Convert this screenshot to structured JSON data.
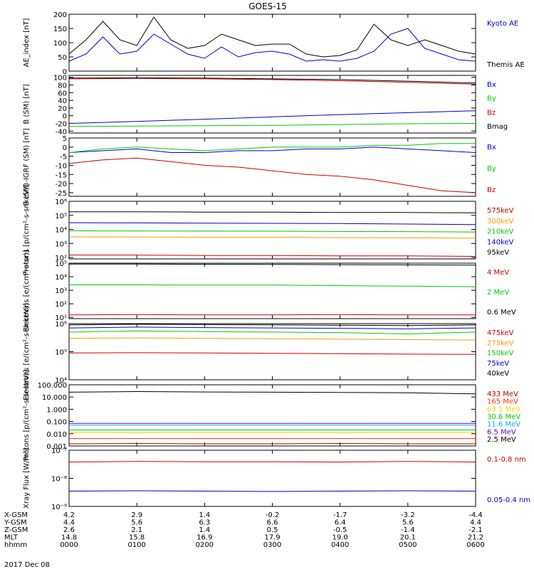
{
  "title": "GOES-15",
  "date_label": "2017 Dec 08",
  "chart_data": [
    {
      "type": "line",
      "ylabel": "AE_index [nT]",
      "yscale": "linear",
      "ylim": [
        0,
        200
      ],
      "ticks": [
        0,
        50,
        100,
        150,
        200
      ],
      "tick_labels": [
        "0",
        "50",
        "100",
        "150",
        "200"
      ],
      "legend": [
        "Kyoto AE",
        "Themis AE"
      ],
      "series": [
        {
          "name": "Kyoto AE",
          "color": "#0000cc",
          "x": [
            0,
            0.25,
            0.5,
            0.75,
            1,
            1.25,
            1.5,
            1.75,
            2,
            2.25,
            2.5,
            2.75,
            3,
            3.25,
            3.5,
            3.75,
            4,
            4.25,
            4.5,
            4.75,
            5,
            5.25,
            5.5,
            5.75,
            6
          ],
          "y": [
            35,
            60,
            120,
            60,
            70,
            130,
            95,
            60,
            45,
            85,
            50,
            65,
            70,
            60,
            35,
            40,
            35,
            45,
            70,
            130,
            150,
            80,
            60,
            40,
            35
          ]
        },
        {
          "name": "Themis AE",
          "color": "#000000",
          "x": [
            0,
            0.25,
            0.5,
            0.75,
            1,
            1.25,
            1.5,
            1.75,
            2,
            2.25,
            2.5,
            2.75,
            3,
            3.25,
            3.5,
            3.75,
            4,
            4.25,
            4.5,
            4.75,
            5,
            5.25,
            5.5,
            5.75,
            6
          ],
          "y": [
            60,
            110,
            175,
            110,
            90,
            190,
            110,
            80,
            90,
            130,
            110,
            90,
            95,
            95,
            60,
            50,
            55,
            75,
            165,
            110,
            90,
            110,
            90,
            70,
            60
          ]
        }
      ]
    },
    {
      "type": "line",
      "ylabel": "B (SM) [nT]",
      "yscale": "linear",
      "ylim": [
        -45,
        105
      ],
      "ticks": [
        -40,
        -20,
        0,
        20,
        40,
        60,
        80,
        100
      ],
      "tick_labels": [
        "-40",
        "-20",
        "0",
        "20",
        "40",
        "60",
        "80",
        "100"
      ],
      "legend": [
        "Bx",
        "By",
        "Bz",
        "Bmag"
      ],
      "series": [
        {
          "name": "Bx",
          "color": "#0000cc",
          "x": [
            0,
            1,
            2,
            3,
            4,
            5,
            6
          ],
          "y": [
            -20,
            -15,
            -9,
            -3,
            3,
            8,
            13
          ]
        },
        {
          "name": "By",
          "color": "#00cc00",
          "x": [
            0,
            1,
            2,
            3,
            4,
            5,
            6
          ],
          "y": [
            -28,
            -27,
            -26,
            -25,
            -23,
            -21,
            -20
          ]
        },
        {
          "name": "Bz",
          "color": "#cc0000",
          "x": [
            0,
            1,
            2,
            3,
            4,
            5,
            6
          ],
          "y": [
            96,
            97,
            96,
            94,
            91,
            87,
            82
          ]
        },
        {
          "name": "Bmag",
          "color": "#000000",
          "x": [
            0,
            1,
            2,
            3,
            4,
            5,
            6
          ],
          "y": [
            98,
            99,
            98,
            96,
            94,
            90,
            85
          ]
        }
      ]
    },
    {
      "type": "line",
      "ylabel": "B (SM)-IGRF (SM) [nT]",
      "yscale": "linear",
      "ylim": [
        -27,
        5
      ],
      "ticks": [
        -25,
        -20,
        -15,
        -10,
        -5,
        0,
        5
      ],
      "tick_labels": [
        "-25",
        "-20",
        "-15",
        "-10",
        "-5",
        "0",
        "5"
      ],
      "legend": [
        "Bx",
        "By",
        "Bz"
      ],
      "series": [
        {
          "name": "Bx",
          "color": "#0000cc",
          "x": [
            0,
            0.5,
            1,
            1.5,
            2,
            2.5,
            3,
            3.5,
            4,
            4.5,
            5,
            5.5,
            6
          ],
          "y": [
            -3,
            -2,
            -1,
            -3,
            -3,
            -2,
            -2,
            -1,
            -1,
            0,
            -1,
            -2,
            -3
          ]
        },
        {
          "name": "By",
          "color": "#00cc00",
          "x": [
            0,
            0.5,
            1,
            1.5,
            2,
            2.5,
            3,
            3.5,
            4,
            4.5,
            5,
            5.5,
            6
          ],
          "y": [
            -3,
            -1,
            0,
            -1,
            -2,
            -1,
            0,
            0,
            0,
            1,
            1,
            2,
            2
          ]
        },
        {
          "name": "Bz",
          "color": "#cc0000",
          "x": [
            0,
            0.5,
            1,
            1.5,
            2,
            2.5,
            3,
            3.5,
            4,
            4.5,
            5,
            5.5,
            6
          ],
          "y": [
            -9,
            -7,
            -6,
            -8,
            -10,
            -11,
            -13,
            -15,
            -16,
            -18,
            -21,
            -24,
            -25
          ]
        }
      ]
    },
    {
      "type": "line",
      "ylabel": "Protons [p/(cm²-s-sr-keV)]",
      "yscale": "log",
      "ylim": [
        80,
        1000000
      ],
      "ticks": [
        100,
        1000,
        10000,
        100000,
        1000000
      ],
      "tick_labels": [
        "10²",
        "10³",
        "10⁴",
        "10⁵",
        "10⁶"
      ],
      "legend": [
        "575keV",
        "300keV",
        "210keV",
        "140keV",
        "95keV"
      ],
      "series": [
        {
          "name": "575keV",
          "color": "#cc0000",
          "x": [
            0,
            1,
            2,
            3,
            4,
            5,
            6
          ],
          "y": [
            150,
            150,
            140,
            140,
            130,
            130,
            120
          ]
        },
        {
          "name": "300keV",
          "color": "#ff9900",
          "x": [
            0,
            1,
            2,
            3,
            4,
            5,
            6
          ],
          "y": [
            3000,
            2900,
            2800,
            2800,
            2600,
            2500,
            2400
          ]
        },
        {
          "name": "210keV",
          "color": "#00cc00",
          "x": [
            0,
            1,
            2,
            3,
            4,
            5,
            6
          ],
          "y": [
            8000,
            7800,
            7600,
            7500,
            7200,
            7000,
            6500
          ]
        },
        {
          "name": "140keV",
          "color": "#0000cc",
          "x": [
            0,
            1,
            2,
            3,
            4,
            5,
            6
          ],
          "y": [
            30000,
            29000,
            28000,
            27000,
            26000,
            24000,
            22000
          ]
        },
        {
          "name": "95keV",
          "color": "#000000",
          "x": [
            0,
            1,
            2,
            3,
            4,
            5,
            6
          ],
          "y": [
            180000,
            180000,
            170000,
            170000,
            160000,
            160000,
            150000
          ]
        }
      ]
    },
    {
      "type": "line",
      "ylabel": "Electrons [e/(cm²-s-sr)]",
      "yscale": "log",
      "ylim": [
        8,
        100000
      ],
      "ticks": [
        10,
        100,
        1000,
        10000,
        100000
      ],
      "tick_labels": [
        "10¹",
        "10²",
        "10³",
        "10⁴",
        "10⁵"
      ],
      "legend": [
        "4 MeV",
        "2 MeV",
        "0.6 MeV"
      ],
      "series": [
        {
          "name": "4 MeV",
          "color": "#cc0000",
          "x": [
            0,
            1,
            2,
            3,
            4,
            5,
            6
          ],
          "y": [
            15,
            16,
            15,
            15,
            16,
            15,
            15
          ]
        },
        {
          "name": "2 MeV",
          "color": "#00cc00",
          "x": [
            0,
            1,
            2,
            3,
            4,
            5,
            6
          ],
          "y": [
            2500,
            2500,
            2400,
            2400,
            2200,
            2000,
            1800
          ]
        },
        {
          "name": "0.6 MeV",
          "color": "#000000",
          "x": [
            0,
            1,
            2,
            3,
            4,
            5,
            6
          ],
          "y": [
            85000,
            85000,
            82000,
            80000,
            78000,
            75000,
            72000
          ]
        }
      ]
    },
    {
      "type": "line",
      "ylabel": "Electrons [e/(cm²-s-sr-keV)]",
      "yscale": "log",
      "ylim": [
        10000,
        1000000
      ],
      "ticks": [
        10000,
        100000,
        1000000
      ],
      "tick_labels": [
        "10⁴",
        "10⁵",
        "10⁶"
      ],
      "legend": [
        "475keV",
        "275keV",
        "150keV",
        "75keV",
        "40keV"
      ],
      "series": [
        {
          "name": "475keV",
          "color": "#cc0000",
          "x": [
            0,
            1,
            2,
            3,
            4,
            5,
            6
          ],
          "y": [
            90000,
            92000,
            90000,
            88000,
            85000,
            82000,
            80000
          ]
        },
        {
          "name": "275keV",
          "color": "#ff9900",
          "x": [
            0,
            1,
            2,
            3,
            4,
            5,
            6
          ],
          "y": [
            300000,
            310000,
            300000,
            290000,
            280000,
            270000,
            260000
          ]
        },
        {
          "name": "150keV",
          "color": "#00cc00",
          "x": [
            0,
            1,
            2,
            3,
            4,
            5,
            6
          ],
          "y": [
            500000,
            550000,
            520000,
            500000,
            480000,
            430000,
            500000
          ]
        },
        {
          "name": "75keV",
          "color": "#0000cc",
          "x": [
            0,
            1,
            2,
            3,
            4,
            5,
            6
          ],
          "y": [
            700000,
            750000,
            720000,
            700000,
            680000,
            650000,
            700000
          ]
        },
        {
          "name": "40keV",
          "color": "#000000",
          "x": [
            0,
            1,
            2,
            3,
            4,
            5,
            6
          ],
          "y": [
            900000,
            950000,
            920000,
            900000,
            880000,
            850000,
            900000
          ]
        }
      ]
    },
    {
      "type": "line",
      "ylabel": "Protons [p/(cm²-s-sr-keV)]",
      "yscale": "log",
      "ylim": [
        0.001,
        100
      ],
      "ticks": [
        0.001,
        0.01,
        0.1,
        1,
        10,
        100
      ],
      "tick_labels": [
        "0.001",
        "0.010",
        "0.100",
        "1.000",
        "10.000",
        "100.000"
      ],
      "legend": [
        "433 MeV",
        "165 MeV",
        "63.1 MeV",
        "30.6 MeV",
        "11.6 MeV",
        "6.5 MeV",
        "2.5 MeV"
      ],
      "series": [
        {
          "name": "433 MeV",
          "color": "#aa0000",
          "x": [
            0,
            1,
            2,
            3,
            4,
            5,
            6
          ],
          "y": [
            0.0015,
            0.0016,
            0.0015,
            0.0015,
            0.0016,
            0.0015,
            0.0015
          ]
        },
        {
          "name": "165 MeV",
          "color": "#ff3300",
          "x": [
            0,
            1,
            2,
            3,
            4,
            5,
            6
          ],
          "y": [
            0.004,
            0.004,
            0.004,
            0.004,
            0.004,
            0.004,
            0.004
          ]
        },
        {
          "name": "63.1 MeV",
          "color": "#ffcc00",
          "x": [
            0,
            1,
            2,
            3,
            4,
            5,
            6
          ],
          "y": [
            0.012,
            0.012,
            0.012,
            0.012,
            0.012,
            0.012,
            0.012
          ]
        },
        {
          "name": "30.6 MeV",
          "color": "#00cc00",
          "x": [
            0,
            1,
            2,
            3,
            4,
            5,
            6
          ],
          "y": [
            0.02,
            0.02,
            0.02,
            0.02,
            0.02,
            0.02,
            0.02
          ]
        },
        {
          "name": "11.6 MeV",
          "color": "#00aaff",
          "x": [
            0,
            1,
            2,
            3,
            4,
            5,
            6
          ],
          "y": [
            0.05,
            0.05,
            0.05,
            0.05,
            0.05,
            0.05,
            0.05
          ]
        },
        {
          "name": "6.5 MeV",
          "color": "#6600cc",
          "x": [
            0,
            1,
            2,
            3,
            4,
            5,
            6
          ],
          "y": [
            0.07,
            0.07,
            0.07,
            0.07,
            0.07,
            0.07,
            0.07
          ]
        },
        {
          "name": "2.5 MeV",
          "color": "#000000",
          "x": [
            0,
            1,
            2,
            3,
            4,
            5,
            6
          ],
          "y": [
            25,
            28,
            26,
            25,
            24,
            22,
            18
          ]
        }
      ]
    },
    {
      "type": "line",
      "ylabel": "Xray Flux [W/m²]",
      "yscale": "log",
      "ylim": [
        1e-09,
        1e-07
      ],
      "ticks": [
        1e-09,
        1e-08,
        1e-07
      ],
      "tick_labels": [
        "10⁻⁹",
        "10⁻⁸",
        "10⁻⁷"
      ],
      "legend": [
        "0.1-0.8 nm",
        "0.05-0.4 nm"
      ],
      "series": [
        {
          "name": "0.1-0.8 nm",
          "color": "#cc0000",
          "x": [
            0,
            1,
            2,
            3,
            4,
            5,
            6
          ],
          "y": [
            3.8e-08,
            4e-08,
            3.9e-08,
            3.9e-08,
            3.8e-08,
            4e-08,
            3.8e-08
          ]
        },
        {
          "name": "0.05-0.4 nm",
          "color": "#0000cc",
          "x": [
            0,
            1,
            2,
            3,
            4,
            5,
            6
          ],
          "y": [
            3.5e-09,
            3.6e-09,
            3.5e-09,
            3.4e-09,
            3.5e-09,
            3.6e-09,
            3.5e-09
          ]
        }
      ]
    }
  ],
  "x_axis": {
    "type": "time",
    "range_hours": [
      0,
      6
    ],
    "tick_hours": [
      0,
      1,
      2,
      3,
      4,
      5,
      6
    ],
    "rows": [
      {
        "label": "X-GSM",
        "values": [
          "4.2",
          "2.9",
          "1.4",
          "-0.2",
          "-1.7",
          "-3.2",
          "-4.4"
        ]
      },
      {
        "label": "Y-GSM",
        "values": [
          "4.4",
          "5.6",
          "6.3",
          "6.6",
          "6.4",
          "5.6",
          "4.4"
        ]
      },
      {
        "label": "Z-GSM",
        "values": [
          "2.6",
          "2.1",
          "1.4",
          "0.5",
          "-0.5",
          "-1.4",
          "-2.1"
        ]
      },
      {
        "label": "MLT",
        "values": [
          "14.8",
          "15.8",
          "16.9",
          "17.9",
          "19.0",
          "20.1",
          "21.2"
        ]
      },
      {
        "label": "hhmm",
        "values": [
          "0000",
          "0100",
          "0200",
          "0300",
          "0400",
          "0500",
          "0600"
        ]
      }
    ]
  }
}
